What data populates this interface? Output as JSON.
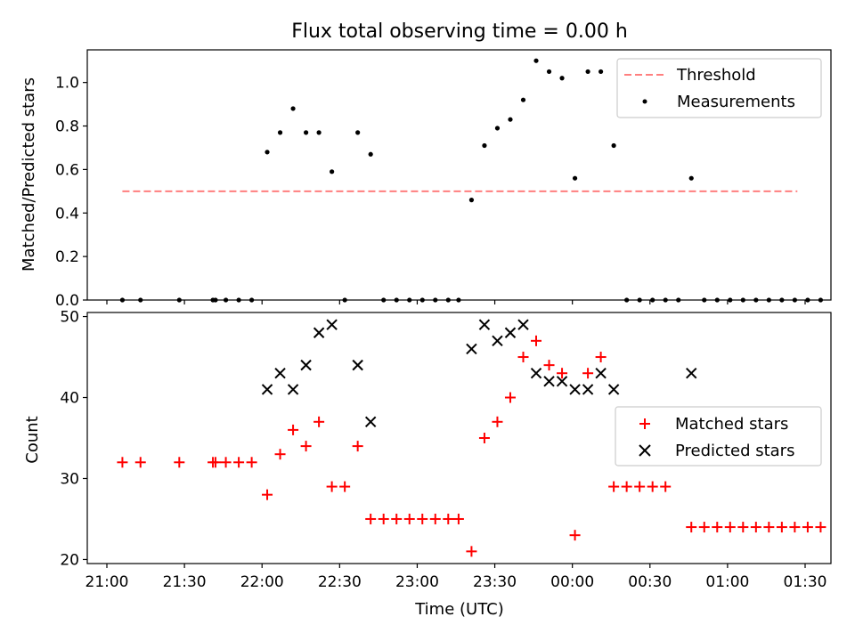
{
  "chart_data": [
    {
      "type": "scatter",
      "title": "Flux total observing time = 0.00 h",
      "xlabel": "",
      "ylabel": "Matched/Predicted stars",
      "ylim": [
        0,
        1.15
      ],
      "xlim": [
        "21:00",
        "01:40"
      ],
      "y_ticks": [
        "0.0",
        "0.2",
        "0.4",
        "0.6",
        "0.8",
        "1.0"
      ],
      "legend_position": "top-right",
      "threshold": {
        "name": "Threshold",
        "value": 0.5,
        "from": "21:06",
        "to": "01:27",
        "color": "#ff7f7f"
      },
      "series": [
        {
          "name": "Measurements",
          "color": "#000000",
          "points": [
            [
              "21:06",
              0
            ],
            [
              "21:13",
              0
            ],
            [
              "21:28",
              0
            ],
            [
              "21:41",
              0
            ],
            [
              "21:42",
              0
            ],
            [
              "21:46",
              0
            ],
            [
              "21:51",
              0
            ],
            [
              "21:56",
              0
            ],
            [
              "22:02",
              0.68
            ],
            [
              "22:07",
              0.77
            ],
            [
              "22:12",
              0.88
            ],
            [
              "22:17",
              0.77
            ],
            [
              "22:22",
              0.77
            ],
            [
              "22:27",
              0.59
            ],
            [
              "22:32",
              0
            ],
            [
              "22:37",
              0.77
            ],
            [
              "22:42",
              0.67
            ],
            [
              "22:47",
              0
            ],
            [
              "22:52",
              0
            ],
            [
              "22:57",
              0
            ],
            [
              "23:02",
              0
            ],
            [
              "23:07",
              0
            ],
            [
              "23:12",
              0
            ],
            [
              "23:16",
              0
            ],
            [
              "23:21",
              0.46
            ],
            [
              "23:26",
              0.71
            ],
            [
              "23:31",
              0.79
            ],
            [
              "23:36",
              0.83
            ],
            [
              "23:41",
              0.92
            ],
            [
              "23:46",
              1.1
            ],
            [
              "23:51",
              1.05
            ],
            [
              "23:56",
              1.02
            ],
            [
              "00:01",
              0.56
            ],
            [
              "00:06",
              1.05
            ],
            [
              "00:11",
              1.05
            ],
            [
              "00:16",
              0.71
            ],
            [
              "00:21",
              0
            ],
            [
              "00:26",
              0
            ],
            [
              "00:31",
              0
            ],
            [
              "00:36",
              0
            ],
            [
              "00:41",
              0
            ],
            [
              "00:46",
              0.56
            ],
            [
              "00:51",
              0
            ],
            [
              "00:56",
              0
            ],
            [
              "01:01",
              0
            ],
            [
              "01:06",
              0
            ],
            [
              "01:11",
              0
            ],
            [
              "01:16",
              0
            ],
            [
              "01:21",
              0
            ],
            [
              "01:26",
              0
            ],
            [
              "01:31",
              0
            ],
            [
              "01:36",
              0
            ]
          ]
        }
      ]
    },
    {
      "type": "scatter",
      "title": "",
      "xlabel": "Time (UTC)",
      "ylabel": "Count",
      "ylim": [
        19.5,
        50.5
      ],
      "xlim": [
        "21:00",
        "01:40"
      ],
      "y_ticks": [
        "20",
        "30",
        "40",
        "50"
      ],
      "x_ticks": [
        "21:00",
        "21:30",
        "22:00",
        "22:30",
        "23:00",
        "23:30",
        "00:00",
        "00:30",
        "01:00",
        "01:30"
      ],
      "legend_position": "center-right",
      "series": [
        {
          "name": "Matched stars",
          "color": "#ff0000",
          "marker": "+",
          "points": [
            [
              "21:06",
              32
            ],
            [
              "21:13",
              32
            ],
            [
              "21:28",
              32
            ],
            [
              "21:41",
              32
            ],
            [
              "21:42",
              32
            ],
            [
              "21:46",
              32
            ],
            [
              "21:51",
              32
            ],
            [
              "21:56",
              32
            ],
            [
              "22:02",
              28
            ],
            [
              "22:07",
              33
            ],
            [
              "22:12",
              36
            ],
            [
              "22:17",
              34
            ],
            [
              "22:22",
              37
            ],
            [
              "22:27",
              29
            ],
            [
              "22:32",
              29
            ],
            [
              "22:37",
              34
            ],
            [
              "22:42",
              25
            ],
            [
              "22:47",
              25
            ],
            [
              "22:52",
              25
            ],
            [
              "22:57",
              25
            ],
            [
              "23:02",
              25
            ],
            [
              "23:07",
              25
            ],
            [
              "23:12",
              25
            ],
            [
              "23:16",
              25
            ],
            [
              "23:21",
              21
            ],
            [
              "23:26",
              35
            ],
            [
              "23:31",
              37
            ],
            [
              "23:36",
              40
            ],
            [
              "23:41",
              45
            ],
            [
              "23:46",
              47
            ],
            [
              "23:51",
              44
            ],
            [
              "23:56",
              43
            ],
            [
              "00:01",
              23
            ],
            [
              "00:06",
              43
            ],
            [
              "00:11",
              45
            ],
            [
              "00:16",
              29
            ],
            [
              "00:21",
              29
            ],
            [
              "00:26",
              29
            ],
            [
              "00:31",
              29
            ],
            [
              "00:36",
              29
            ],
            [
              "00:46",
              24
            ],
            [
              "00:51",
              24
            ],
            [
              "00:56",
              24
            ],
            [
              "01:01",
              24
            ],
            [
              "01:06",
              24
            ],
            [
              "01:11",
              24
            ],
            [
              "01:16",
              24
            ],
            [
              "01:21",
              24
            ],
            [
              "01:26",
              24
            ],
            [
              "01:31",
              24
            ],
            [
              "01:36",
              24
            ]
          ]
        },
        {
          "name": "Predicted stars",
          "color": "#000000",
          "marker": "x",
          "points": [
            [
              "22:02",
              41
            ],
            [
              "22:07",
              43
            ],
            [
              "22:12",
              41
            ],
            [
              "22:17",
              44
            ],
            [
              "22:22",
              48
            ],
            [
              "22:27",
              49
            ],
            [
              "22:37",
              44
            ],
            [
              "22:42",
              37
            ],
            [
              "23:21",
              46
            ],
            [
              "23:26",
              49
            ],
            [
              "23:31",
              47
            ],
            [
              "23:36",
              48
            ],
            [
              "23:41",
              49
            ],
            [
              "23:46",
              43
            ],
            [
              "23:51",
              42
            ],
            [
              "23:56",
              42
            ],
            [
              "00:01",
              41
            ],
            [
              "00:06",
              41
            ],
            [
              "00:11",
              43
            ],
            [
              "00:16",
              41
            ],
            [
              "00:46",
              43
            ]
          ]
        }
      ]
    }
  ]
}
